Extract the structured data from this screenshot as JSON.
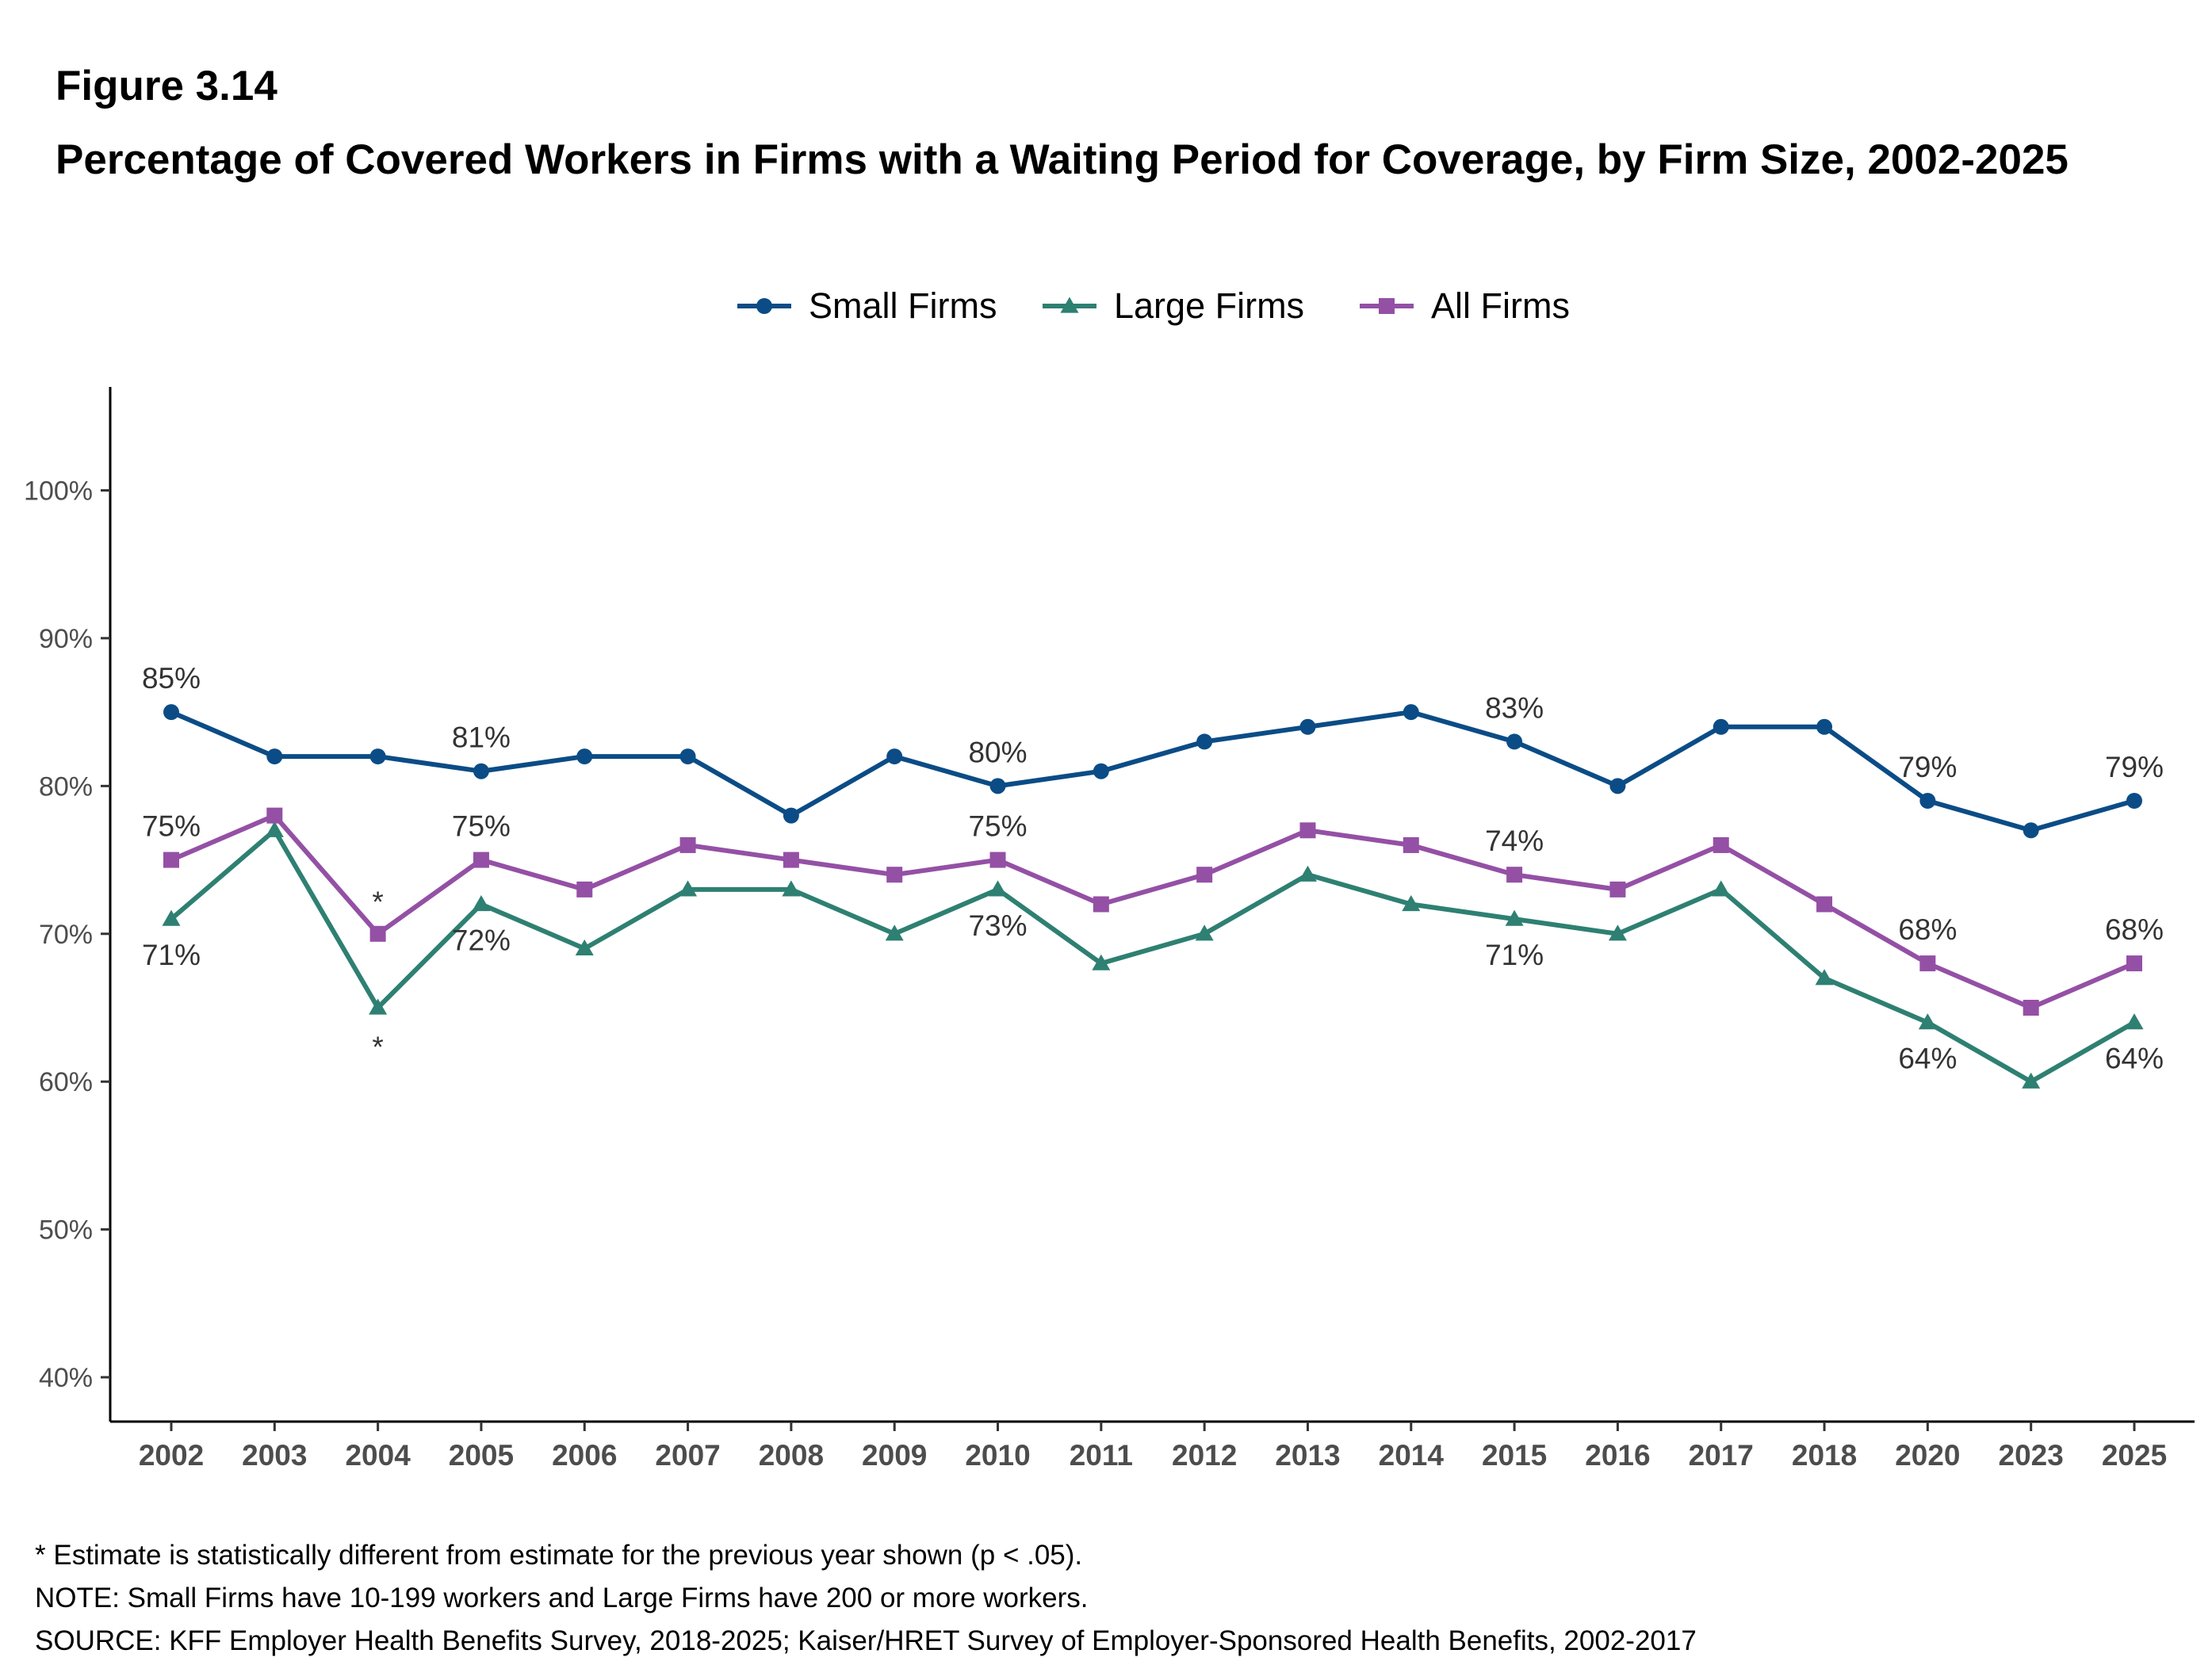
{
  "figure_label": "Figure 3.14",
  "title": "Percentage of Covered Workers in Firms with a Waiting Period for Coverage, by Firm Size, 2002-2025",
  "notes": [
    "* Estimate is statistically different from estimate for the previous year shown (p < .05).",
    "NOTE: Small Firms have 10-199 workers and Large Firms have 200 or more workers.",
    "SOURCE: KFF Employer Health Benefits Survey, 2018-2025; Kaiser/HRET Survey of Employer-Sponsored Health Benefits, 2002-2017"
  ],
  "chart_data": {
    "type": "line",
    "categories": [
      "2002",
      "2003",
      "2004",
      "2005",
      "2006",
      "2007",
      "2008",
      "2009",
      "2010",
      "2011",
      "2012",
      "2013",
      "2014",
      "2015",
      "2016",
      "2017",
      "2018",
      "2020",
      "2023",
      "2025"
    ],
    "ylim": [
      37,
      107
    ],
    "yticks": [
      40,
      50,
      60,
      70,
      80,
      90,
      100
    ],
    "ytick_labels": [
      "40%",
      "50%",
      "60%",
      "70%",
      "80%",
      "90%",
      "100%"
    ],
    "legend_position": "top",
    "series": [
      {
        "name": "Small Firms",
        "color": "#0b4c86",
        "marker": "circle",
        "values": [
          85,
          82,
          82,
          81,
          82,
          82,
          78,
          82,
          80,
          81,
          83,
          84,
          85,
          83,
          80,
          84,
          84,
          79,
          77,
          79
        ],
        "labels": [
          {
            "category": "2002",
            "text": "85%",
            "position": "above"
          },
          {
            "category": "2005",
            "text": "81%",
            "position": "above"
          },
          {
            "category": "2010",
            "text": "80%",
            "position": "above"
          },
          {
            "category": "2015",
            "text": "83%",
            "position": "above"
          },
          {
            "category": "2020",
            "text": "79%",
            "position": "above"
          },
          {
            "category": "2025",
            "text": "79%",
            "position": "above"
          }
        ]
      },
      {
        "name": "Large Firms",
        "color": "#2e8072",
        "marker": "triangle",
        "values": [
          71,
          77,
          65,
          72,
          69,
          73,
          73,
          70,
          73,
          68,
          70,
          74,
          72,
          71,
          70,
          73,
          67,
          64,
          60,
          64
        ],
        "labels": [
          {
            "category": "2002",
            "text": "71%",
            "position": "below"
          },
          {
            "category": "2004",
            "text": "*",
            "position": "below"
          },
          {
            "category": "2005",
            "text": "72%",
            "position": "below"
          },
          {
            "category": "2010",
            "text": "73%",
            "position": "below"
          },
          {
            "category": "2015",
            "text": "71%",
            "position": "below"
          },
          {
            "category": "2020",
            "text": "64%",
            "position": "below"
          },
          {
            "category": "2025",
            "text": "64%",
            "position": "below"
          }
        ]
      },
      {
        "name": "All Firms",
        "color": "#9450a5",
        "marker": "square",
        "values": [
          75,
          78,
          70,
          75,
          73,
          76,
          75,
          74,
          75,
          72,
          74,
          77,
          76,
          74,
          73,
          76,
          72,
          68,
          65,
          68
        ],
        "labels": [
          {
            "category": "2002",
            "text": "75%",
            "position": "above"
          },
          {
            "category": "2004",
            "text": "*",
            "position": "above"
          },
          {
            "category": "2005",
            "text": "75%",
            "position": "above"
          },
          {
            "category": "2010",
            "text": "75%",
            "position": "above"
          },
          {
            "category": "2015",
            "text": "74%",
            "position": "above"
          },
          {
            "category": "2020",
            "text": "68%",
            "position": "above"
          },
          {
            "category": "2025",
            "text": "68%",
            "position": "above"
          }
        ]
      }
    ]
  }
}
